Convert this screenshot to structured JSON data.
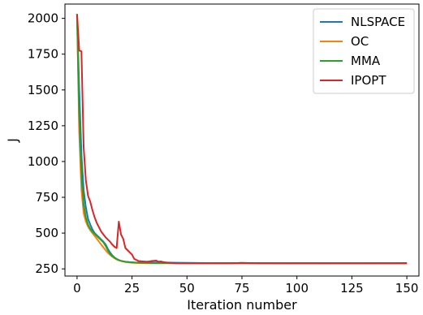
{
  "chart_data": {
    "type": "line",
    "xlabel": "Iteration number",
    "ylabel": "J",
    "xlim": [
      -5.5,
      155.5
    ],
    "ylim": [
      200,
      2100
    ],
    "xticks": [
      0,
      25,
      50,
      75,
      100,
      125,
      150
    ],
    "yticks": [
      250,
      500,
      750,
      1000,
      1250,
      1500,
      1750,
      2000
    ],
    "grid": false,
    "legend_position": "top-right",
    "series": [
      {
        "name": "NLSPACE",
        "color": "#1f77b4",
        "x": [
          0,
          1,
          2,
          3,
          4,
          5,
          6,
          7,
          8,
          9,
          10,
          11,
          12,
          13,
          14,
          15,
          16,
          17,
          18,
          19,
          20,
          22,
          24,
          26,
          28,
          30,
          35,
          40,
          45,
          50,
          60,
          70,
          80,
          100,
          125,
          150
        ],
        "y": [
          2030,
          1500,
          1050,
          800,
          680,
          600,
          560,
          525,
          500,
          485,
          470,
          455,
          440,
          420,
          390,
          365,
          345,
          330,
          320,
          312,
          306,
          300,
          297,
          295,
          294,
          293,
          294,
          294,
          293,
          292,
          291,
          291,
          290,
          290,
          289,
          289
        ]
      },
      {
        "name": "OC",
        "color": "#ff7f0e",
        "x": [
          0,
          1,
          2,
          3,
          4,
          5,
          6,
          7,
          8,
          9,
          10,
          11,
          12,
          13,
          14,
          15,
          16,
          17,
          18,
          19,
          20,
          22,
          24,
          26,
          28,
          30,
          35,
          40,
          45,
          50,
          60,
          70,
          80,
          100,
          125,
          150
        ],
        "y": [
          2030,
          1200,
          800,
          640,
          580,
          545,
          520,
          500,
          480,
          460,
          440,
          420,
          400,
          380,
          362,
          348,
          335,
          325,
          316,
          310,
          305,
          298,
          294,
          292,
          291,
          290,
          289,
          289,
          289,
          289,
          289,
          289,
          289,
          289,
          289,
          289
        ]
      },
      {
        "name": "MMA",
        "color": "#2ca02c",
        "x": [
          0,
          1,
          2,
          3,
          4,
          5,
          6,
          7,
          8,
          9,
          10,
          11,
          12,
          13,
          14,
          15,
          16,
          17,
          18,
          19,
          20,
          22,
          24,
          26,
          28,
          30,
          35,
          40,
          45,
          50,
          60,
          70,
          80,
          100,
          125,
          150
        ],
        "y": [
          2030,
          1300,
          900,
          700,
          610,
          560,
          530,
          510,
          495,
          480,
          465,
          450,
          435,
          410,
          380,
          355,
          340,
          328,
          318,
          311,
          306,
          300,
          296,
          294,
          293,
          292,
          291,
          291,
          290,
          290,
          290,
          290,
          290,
          289,
          289,
          289
        ]
      },
      {
        "name": "IPOPT",
        "color": "#d62728",
        "x": [
          0,
          1,
          2,
          3,
          4,
          5,
          6,
          7,
          8,
          9,
          10,
          11,
          12,
          13,
          14,
          15,
          16,
          17,
          18,
          19,
          20,
          21,
          22,
          23,
          24,
          25,
          26,
          28,
          30,
          32,
          34,
          36,
          37,
          38,
          40,
          45,
          50,
          60,
          70,
          75,
          80,
          85,
          100,
          125,
          150
        ],
        "y": [
          2030,
          1775,
          1770,
          1100,
          870,
          760,
          720,
          660,
          610,
          570,
          540,
          510,
          490,
          470,
          455,
          440,
          420,
          405,
          395,
          580,
          490,
          460,
          395,
          380,
          365,
          350,
          320,
          305,
          302,
          300,
          305,
          308,
          300,
          302,
          295,
          290,
          289,
          289,
          289,
          292,
          290,
          289,
          289,
          289,
          290
        ]
      }
    ]
  }
}
